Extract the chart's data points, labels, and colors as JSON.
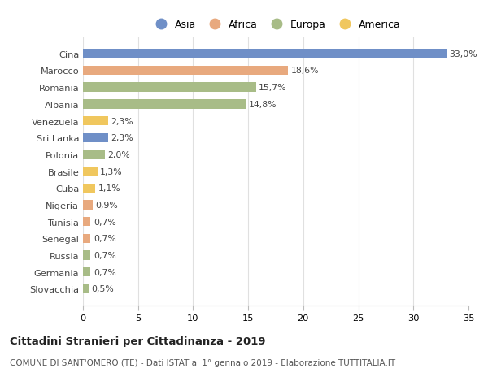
{
  "countries": [
    "Cina",
    "Marocco",
    "Romania",
    "Albania",
    "Venezuela",
    "Sri Lanka",
    "Polonia",
    "Brasile",
    "Cuba",
    "Nigeria",
    "Tunisia",
    "Senegal",
    "Russia",
    "Germania",
    "Slovacchia"
  ],
  "values": [
    33.0,
    18.6,
    15.7,
    14.8,
    2.3,
    2.3,
    2.0,
    1.3,
    1.1,
    0.9,
    0.7,
    0.7,
    0.7,
    0.7,
    0.5
  ],
  "labels": [
    "33,0%",
    "18,6%",
    "15,7%",
    "14,8%",
    "2,3%",
    "2,3%",
    "2,0%",
    "1,3%",
    "1,1%",
    "0,9%",
    "0,7%",
    "0,7%",
    "0,7%",
    "0,7%",
    "0,5%"
  ],
  "bar_colors": [
    "#6f8fc7",
    "#e8a97e",
    "#a8bc87",
    "#a8bc87",
    "#f0c75e",
    "#6f8fc7",
    "#a8bc87",
    "#f0c75e",
    "#f0c75e",
    "#e8a97e",
    "#e8a97e",
    "#e8a97e",
    "#a8bc87",
    "#a8bc87",
    "#a8bc87"
  ],
  "title": "Cittadini Stranieri per Cittadinanza - 2019",
  "subtitle": "COMUNE DI SANT'OMERO (TE) - Dati ISTAT al 1° gennaio 2019 - Elaborazione TUTTITALIA.IT",
  "xlim": [
    0,
    35
  ],
  "xticks": [
    0,
    5,
    10,
    15,
    20,
    25,
    30,
    35
  ],
  "background_color": "#ffffff",
  "grid_color": "#e0e0e0",
  "legend_labels": [
    "Asia",
    "Africa",
    "Europa",
    "America"
  ],
  "legend_colors": [
    "#6f8fc7",
    "#e8a97e",
    "#a8bc87",
    "#f0c75e"
  ]
}
